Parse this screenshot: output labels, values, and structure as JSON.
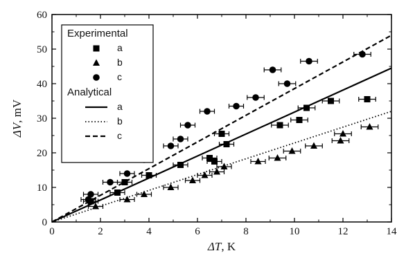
{
  "chart_data": {
    "type": "scatter",
    "xlabel_symbol": "ΔT",
    "xlabel_unit": ", K",
    "ylabel_symbol": "ΔV",
    "ylabel_unit": ", mV",
    "xlim": [
      0,
      14
    ],
    "ylim": [
      0,
      60
    ],
    "xticks": [
      0,
      2,
      4,
      6,
      8,
      10,
      12,
      14
    ],
    "yticks": [
      0,
      10,
      20,
      30,
      40,
      50,
      60
    ],
    "grid": false,
    "legend_position": "top-left",
    "legend_groups": [
      {
        "title": "Experimental",
        "entries": [
          "a",
          "b",
          "c"
        ]
      },
      {
        "title": "Analytical",
        "entries": [
          "a",
          "b",
          "c"
        ]
      }
    ],
    "experimental": [
      {
        "name": "a",
        "marker": "square",
        "points": [
          {
            "x": 1.6,
            "y": 6,
            "xerr": 0.3
          },
          {
            "x": 2.7,
            "y": 8.5,
            "xerr": 0.3
          },
          {
            "x": 3.0,
            "y": 11.5,
            "xerr": 0.3
          },
          {
            "x": 4.0,
            "y": 13.5,
            "xerr": 0.3
          },
          {
            "x": 5.3,
            "y": 16.5,
            "xerr": 0.3
          },
          {
            "x": 6.5,
            "y": 18.5,
            "xerr": 0.3
          },
          {
            "x": 6.7,
            "y": 17.5,
            "xerr": 0.3
          },
          {
            "x": 7.0,
            "y": 25.5,
            "xerr": 0.3
          },
          {
            "x": 7.2,
            "y": 22.5,
            "xerr": 0.3
          },
          {
            "x": 9.4,
            "y": 28,
            "xerr": 0.35
          },
          {
            "x": 10.2,
            "y": 29.5,
            "xerr": 0.35
          },
          {
            "x": 10.5,
            "y": 33,
            "xerr": 0.35
          },
          {
            "x": 11.5,
            "y": 35,
            "xerr": 0.35
          },
          {
            "x": 13.0,
            "y": 35.5,
            "xerr": 0.35
          }
        ]
      },
      {
        "name": "b",
        "marker": "triangle",
        "points": [
          {
            "x": 1.8,
            "y": 4.5,
            "xerr": 0.3
          },
          {
            "x": 3.1,
            "y": 6.5,
            "xerr": 0.3
          },
          {
            "x": 3.8,
            "y": 8,
            "xerr": 0.3
          },
          {
            "x": 4.9,
            "y": 10,
            "xerr": 0.3
          },
          {
            "x": 5.8,
            "y": 12,
            "xerr": 0.3
          },
          {
            "x": 6.3,
            "y": 13.5,
            "xerr": 0.3
          },
          {
            "x": 6.8,
            "y": 14.5,
            "xerr": 0.3
          },
          {
            "x": 7.1,
            "y": 16,
            "xerr": 0.3
          },
          {
            "x": 8.5,
            "y": 17.5,
            "xerr": 0.3
          },
          {
            "x": 9.3,
            "y": 18.5,
            "xerr": 0.35
          },
          {
            "x": 9.9,
            "y": 20.5,
            "xerr": 0.35
          },
          {
            "x": 10.8,
            "y": 22,
            "xerr": 0.35
          },
          {
            "x": 11.9,
            "y": 23.5,
            "xerr": 0.35
          },
          {
            "x": 12.0,
            "y": 25.5,
            "xerr": 0.35
          },
          {
            "x": 13.1,
            "y": 27.5,
            "xerr": 0.35
          }
        ]
      },
      {
        "name": "c",
        "marker": "circle",
        "points": [
          {
            "x": 1.5,
            "y": 6.5,
            "xerr": 0.3
          },
          {
            "x": 1.6,
            "y": 8,
            "xerr": 0.3
          },
          {
            "x": 2.4,
            "y": 11.5,
            "xerr": 0.3
          },
          {
            "x": 3.1,
            "y": 14,
            "xerr": 0.3
          },
          {
            "x": 3.8,
            "y": 18,
            "xerr": 0.3
          },
          {
            "x": 4.9,
            "y": 22,
            "xerr": 0.3
          },
          {
            "x": 5.3,
            "y": 24,
            "xerr": 0.3
          },
          {
            "x": 5.6,
            "y": 28,
            "xerr": 0.3
          },
          {
            "x": 6.4,
            "y": 32,
            "xerr": 0.3
          },
          {
            "x": 7.6,
            "y": 33.5,
            "xerr": 0.3
          },
          {
            "x": 8.4,
            "y": 36,
            "xerr": 0.35
          },
          {
            "x": 9.1,
            "y": 44,
            "xerr": 0.35
          },
          {
            "x": 9.7,
            "y": 40,
            "xerr": 0.35
          },
          {
            "x": 10.6,
            "y": 46.5,
            "xerr": 0.35
          },
          {
            "x": 12.8,
            "y": 48.5,
            "xerr": 0.35
          }
        ]
      }
    ],
    "analytical": [
      {
        "name": "a",
        "style": "solid",
        "x": [
          0,
          14
        ],
        "y": [
          0,
          44.5
        ]
      },
      {
        "name": "b",
        "style": "dotted",
        "x": [
          0,
          14
        ],
        "y": [
          0,
          32
        ]
      },
      {
        "name": "c",
        "style": "dashed",
        "x": [
          0,
          14
        ],
        "y": [
          0,
          54
        ]
      }
    ]
  }
}
